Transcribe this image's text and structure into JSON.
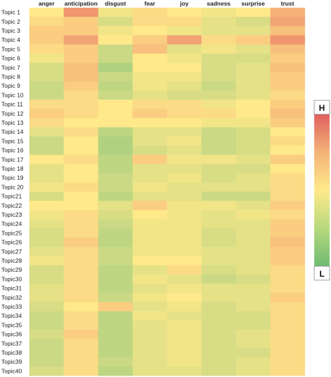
{
  "chart_data": {
    "type": "heatmap",
    "columns": [
      "anger",
      "anticipation",
      "disgust",
      "fear",
      "joy",
      "sadness",
      "surprise",
      "trust"
    ],
    "rows": [
      "Topic 1",
      "Topic 2",
      "Topic 3",
      "Topic 4",
      "Topic 5",
      "Topic 6",
      "Topic 7",
      "Topic 8",
      "Topic 9",
      "Topic 10",
      "Topic 11",
      "Topic 12",
      "Topic 13",
      "Topic 14",
      "Topic 15",
      "Topic 16",
      "Topic 17",
      "Topic 18",
      "Topic 19",
      "Topic 20",
      "Topic21",
      "Topic22",
      "Topic23",
      "Topic24",
      "Topic25",
      "Topic26",
      "Topic27",
      "Topic28",
      "Topic29",
      "Topic30",
      "Topic31",
      "Topic32",
      "Topic33",
      "Topic34",
      "Topic35",
      "Topic36",
      "Topic37",
      "Topic38",
      "Topic39",
      "Topic40"
    ],
    "values": [
      [
        0.5,
        0.8,
        0.45,
        0.55,
        0.5,
        0.45,
        0.5,
        0.7
      ],
      [
        0.55,
        0.6,
        0.35,
        0.55,
        0.55,
        0.4,
        0.35,
        0.75
      ],
      [
        0.6,
        0.6,
        0.45,
        0.5,
        0.45,
        0.4,
        0.4,
        0.65
      ],
      [
        0.6,
        0.75,
        0.5,
        0.6,
        0.75,
        0.55,
        0.6,
        0.8
      ],
      [
        0.55,
        0.6,
        0.3,
        0.65,
        0.4,
        0.45,
        0.4,
        0.65
      ],
      [
        0.45,
        0.6,
        0.3,
        0.5,
        0.45,
        0.35,
        0.35,
        0.6
      ],
      [
        0.35,
        0.65,
        0.2,
        0.5,
        0.5,
        0.35,
        0.4,
        0.65
      ],
      [
        0.35,
        0.65,
        0.3,
        0.45,
        0.45,
        0.35,
        0.4,
        0.6
      ],
      [
        0.3,
        0.6,
        0.25,
        0.45,
        0.4,
        0.3,
        0.4,
        0.6
      ],
      [
        0.3,
        0.55,
        0.3,
        0.4,
        0.35,
        0.35,
        0.4,
        0.55
      ],
      [
        0.55,
        0.55,
        0.5,
        0.55,
        0.55,
        0.45,
        0.5,
        0.6
      ],
      [
        0.6,
        0.55,
        0.5,
        0.6,
        0.55,
        0.55,
        0.5,
        0.65
      ],
      [
        0.55,
        0.5,
        0.5,
        0.5,
        0.5,
        0.45,
        0.45,
        0.6
      ],
      [
        0.4,
        0.55,
        0.25,
        0.4,
        0.4,
        0.3,
        0.35,
        0.5
      ],
      [
        0.3,
        0.5,
        0.2,
        0.4,
        0.45,
        0.3,
        0.35,
        0.55
      ],
      [
        0.3,
        0.5,
        0.2,
        0.35,
        0.4,
        0.3,
        0.35,
        0.5
      ],
      [
        0.5,
        0.55,
        0.25,
        0.6,
        0.45,
        0.45,
        0.4,
        0.6
      ],
      [
        0.4,
        0.5,
        0.25,
        0.4,
        0.4,
        0.35,
        0.35,
        0.5
      ],
      [
        0.4,
        0.5,
        0.3,
        0.4,
        0.45,
        0.35,
        0.4,
        0.55
      ],
      [
        0.45,
        0.55,
        0.3,
        0.45,
        0.4,
        0.4,
        0.4,
        0.55
      ],
      [
        0.35,
        0.5,
        0.25,
        0.4,
        0.4,
        0.3,
        0.3,
        0.55
      ],
      [
        0.5,
        0.5,
        0.4,
        0.6,
        0.45,
        0.45,
        0.4,
        0.6
      ],
      [
        0.45,
        0.55,
        0.35,
        0.5,
        0.45,
        0.4,
        0.45,
        0.55
      ],
      [
        0.4,
        0.55,
        0.3,
        0.45,
        0.45,
        0.4,
        0.4,
        0.6
      ],
      [
        0.35,
        0.55,
        0.25,
        0.45,
        0.45,
        0.35,
        0.4,
        0.6
      ],
      [
        0.35,
        0.6,
        0.25,
        0.45,
        0.45,
        0.35,
        0.4,
        0.65
      ],
      [
        0.4,
        0.55,
        0.3,
        0.45,
        0.45,
        0.4,
        0.4,
        0.6
      ],
      [
        0.45,
        0.55,
        0.3,
        0.5,
        0.5,
        0.4,
        0.4,
        0.6
      ],
      [
        0.35,
        0.55,
        0.25,
        0.4,
        0.55,
        0.35,
        0.4,
        0.55
      ],
      [
        0.35,
        0.55,
        0.25,
        0.45,
        0.4,
        0.3,
        0.35,
        0.55
      ],
      [
        0.4,
        0.55,
        0.25,
        0.4,
        0.45,
        0.4,
        0.4,
        0.55
      ],
      [
        0.4,
        0.55,
        0.3,
        0.45,
        0.5,
        0.4,
        0.4,
        0.6
      ],
      [
        0.35,
        0.5,
        0.6,
        0.4,
        0.45,
        0.35,
        0.4,
        0.55
      ],
      [
        0.3,
        0.55,
        0.25,
        0.45,
        0.4,
        0.35,
        0.35,
        0.55
      ],
      [
        0.3,
        0.55,
        0.25,
        0.4,
        0.45,
        0.35,
        0.35,
        0.55
      ],
      [
        0.35,
        0.6,
        0.25,
        0.4,
        0.45,
        0.35,
        0.4,
        0.55
      ],
      [
        0.3,
        0.55,
        0.25,
        0.4,
        0.45,
        0.35,
        0.4,
        0.55
      ],
      [
        0.3,
        0.55,
        0.25,
        0.4,
        0.45,
        0.35,
        0.35,
        0.55
      ],
      [
        0.3,
        0.55,
        0.3,
        0.4,
        0.45,
        0.35,
        0.4,
        0.55
      ],
      [
        0.35,
        0.55,
        0.25,
        0.4,
        0.4,
        0.35,
        0.4,
        0.55
      ]
    ],
    "scale": {
      "min": 0,
      "max": 1
    },
    "colorscale": [
      "#7cc27a",
      "#ffe98a",
      "#e55f5f"
    ],
    "legend": {
      "high_label": "H",
      "low_label": "L",
      "placement": "right"
    }
  }
}
